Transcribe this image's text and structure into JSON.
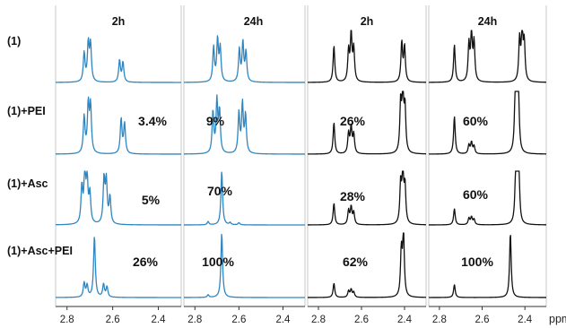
{
  "chart_data": {
    "type": "line",
    "x_unit": "ppm",
    "x_direction": "reversed",
    "xlim": [
      2.85,
      2.3
    ],
    "x_ticks": [
      "2.8",
      "2.6",
      "2.4"
    ],
    "grid": false,
    "row_labels": [
      "(1)",
      "(1)+PEI",
      "(1)+Asc",
      "(1)+Asc+PEI"
    ],
    "panels": [
      {
        "title": "2h",
        "color": "#2e86c1",
        "spectra": [
          {
            "row": "(1)",
            "percent": "",
            "peaks": [
              [
                2.725,
                0.55
              ],
              [
                2.707,
                0.72
              ],
              [
                2.697,
                0.7
              ],
              [
                2.57,
                0.42
              ],
              [
                2.555,
                0.38
              ]
            ]
          },
          {
            "row": "(1)+PEI",
            "percent": "3.4%",
            "peaks": [
              [
                2.725,
                0.58
              ],
              [
                2.707,
                0.76
              ],
              [
                2.697,
                0.74
              ],
              [
                2.563,
                0.55
              ],
              [
                2.548,
                0.48
              ]
            ]
          },
          {
            "row": "(1)+Asc",
            "percent": "5%",
            "peaks": [
              [
                2.735,
                0.68
              ],
              [
                2.722,
                0.95
              ],
              [
                2.712,
                0.78
              ],
              [
                2.7,
                0.55
              ],
              [
                2.638,
                0.82
              ],
              [
                2.628,
                0.78
              ],
              [
                2.612,
                0.5
              ]
            ]
          },
          {
            "row": "(1)+Asc+PEI",
            "percent": "26%",
            "peaks": [
              [
                2.725,
                0.22
              ],
              [
                2.712,
                0.18
              ],
              [
                2.68,
                0.95
              ],
              [
                2.64,
                0.2
              ],
              [
                2.625,
                0.16
              ]
            ]
          }
        ]
      },
      {
        "title": "24h",
        "color": "#2e86c1",
        "spectra": [
          {
            "row": "(1)",
            "percent": "",
            "peaks": [
              [
                2.715,
                0.66
              ],
              [
                2.697,
                0.8
              ],
              [
                2.685,
                0.64
              ],
              [
                2.598,
                0.62
              ],
              [
                2.582,
                0.74
              ],
              [
                2.568,
                0.56
              ]
            ]
          },
          {
            "row": "(1)+PEI",
            "percent": "9%",
            "peaks": [
              [
                2.718,
                0.66
              ],
              [
                2.7,
                0.82
              ],
              [
                2.688,
                0.66
              ],
              [
                2.6,
                0.64
              ],
              [
                2.584,
                0.78
              ],
              [
                2.57,
                0.6
              ]
            ]
          },
          {
            "row": "(1)+Asc",
            "percent": "70%",
            "peaks": [
              [
                2.74,
                0.06
              ],
              [
                2.678,
                1.0
              ],
              [
                2.64,
                0.04
              ],
              [
                2.6,
                0.04
              ]
            ]
          },
          {
            "row": "(1)+Asc+PEI",
            "percent": "100%",
            "peaks": [
              [
                2.74,
                0.04
              ],
              [
                2.678,
                1.0
              ]
            ]
          }
        ]
      },
      {
        "title": "2h",
        "color": "#111111",
        "spectra": [
          {
            "row": "(1)",
            "percent": "",
            "peaks": [
              [
                2.728,
                0.7
              ],
              [
                2.66,
                0.58
              ],
              [
                2.648,
                0.92
              ],
              [
                2.636,
                0.62
              ],
              [
                2.413,
                0.76
              ],
              [
                2.4,
                0.68
              ]
            ]
          },
          {
            "row": "(1)+PEI",
            "percent": "26%",
            "peaks": [
              [
                2.728,
                0.5
              ],
              [
                2.66,
                0.32
              ],
              [
                2.648,
                0.42
              ],
              [
                2.636,
                0.3
              ],
              [
                2.418,
                0.78
              ],
              [
                2.408,
                1.0
              ],
              [
                2.398,
                0.7
              ]
            ]
          },
          {
            "row": "(1)+Asc",
            "percent": "28%",
            "peaks": [
              [
                2.728,
                0.4
              ],
              [
                2.66,
                0.26
              ],
              [
                2.648,
                0.32
              ],
              [
                2.636,
                0.22
              ],
              [
                2.418,
                0.74
              ],
              [
                2.408,
                0.98
              ],
              [
                2.398,
                0.68
              ]
            ]
          },
          {
            "row": "(1)+Asc+PEI",
            "percent": "62%",
            "peaks": [
              [
                2.728,
                0.22
              ],
              [
                2.66,
                0.1
              ],
              [
                2.648,
                0.12
              ],
              [
                2.636,
                0.08
              ],
              [
                2.415,
                0.7
              ],
              [
                2.405,
                1.0
              ]
            ]
          }
        ]
      },
      {
        "title": "24h",
        "color": "#111111",
        "spectra": [
          {
            "row": "(1)",
            "percent": "",
            "peaks": [
              [
                2.73,
                0.72
              ],
              [
                2.662,
                0.7
              ],
              [
                2.65,
                0.94
              ],
              [
                2.638,
                0.74
              ],
              [
                2.425,
                0.8
              ],
              [
                2.413,
                1.0
              ],
              [
                2.403,
                0.72
              ]
            ]
          },
          {
            "row": "(1)+PEI",
            "percent": "60%",
            "peaks": [
              [
                2.73,
                0.6
              ],
              [
                2.662,
                0.14
              ],
              [
                2.65,
                0.18
              ],
              [
                2.638,
                0.12
              ],
              [
                2.445,
                0.85
              ],
              [
                2.438,
                1.0
              ],
              [
                2.43,
                0.78
              ]
            ]
          },
          {
            "row": "(1)+Asc",
            "percent": "60%",
            "peaks": [
              [
                2.73,
                0.3
              ],
              [
                2.662,
                0.12
              ],
              [
                2.65,
                0.14
              ],
              [
                2.638,
                0.1
              ],
              [
                2.443,
                0.82
              ],
              [
                2.436,
                1.0
              ],
              [
                2.428,
                0.8
              ]
            ]
          },
          {
            "row": "(1)+Asc+PEI",
            "percent": "100%",
            "peaks": [
              [
                2.73,
                0.2
              ],
              [
                2.468,
                1.0
              ]
            ]
          }
        ]
      }
    ]
  }
}
